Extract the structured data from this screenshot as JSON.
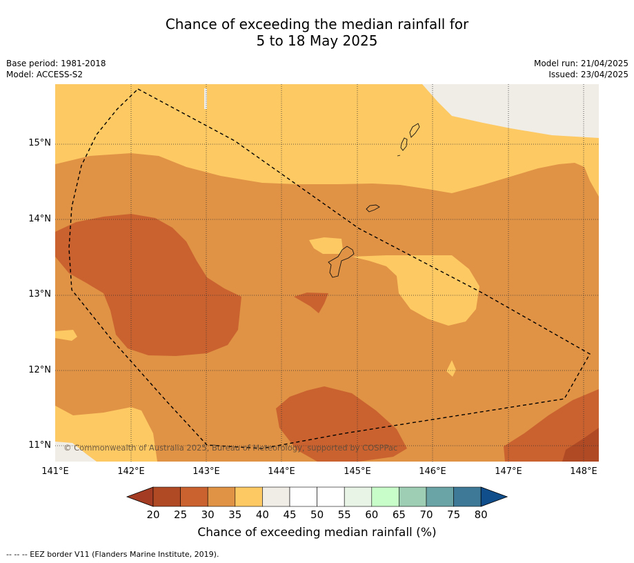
{
  "title_line1": "Chance of exceeding the median rainfall for",
  "title_line2": "5 to 18 May 2025",
  "base_period": "Base period: 1981-2018",
  "model": "Model: ACCESS-S2",
  "model_run": "Model run: 21/04/2025",
  "issued": "Issued: 23/04/2025",
  "copyright": "© Commonwealth of Australia 2025, Bureau of Meteorology, supported by COSPPac",
  "lat_labels": [
    "15°N",
    "14°N",
    "13°N",
    "12°N",
    "11°N"
  ],
  "lon_labels": [
    "141°E",
    "142°E",
    "143°E",
    "144°E",
    "145°E",
    "146°E",
    "147°E",
    "148°E"
  ],
  "colorbar": {
    "title": "Chance of exceeding median rainfall (%)",
    "ticks": [
      "20",
      "25",
      "30",
      "35",
      "40",
      "45",
      "50",
      "55",
      "60",
      "65",
      "70",
      "75",
      "80"
    ],
    "colors": [
      "#a33c22",
      "#b04a25",
      "#c9622f",
      "#e09245",
      "#fdc963",
      "#f0ece6",
      "#ffffff",
      "#ffffff",
      "#e8f5e6",
      "#c8fcc8",
      "#9ecfb4",
      "#6aa4a6",
      "#3e7a98",
      "#104e8b"
    ]
  },
  "footer": "-- -- -- EEZ border V11 (Flanders Marine Institute, 2019)."
}
